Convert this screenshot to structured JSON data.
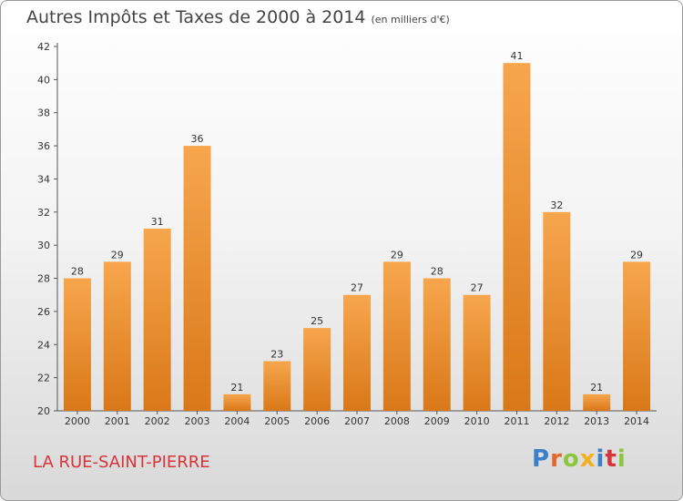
{
  "header": {
    "title": "Autres Impôts et Taxes de 2000 à 2014",
    "unit": "(en milliers d'€)"
  },
  "footer": {
    "location": "LA RUE-SAINT-PIERRE",
    "logo_letters": [
      "P",
      "r",
      "o",
      "x",
      "i",
      "t",
      "i"
    ],
    "logo_colors": [
      "#3a7fc8",
      "#e2672b",
      "#8cc63f",
      "#f2b01e",
      "#3a7fc8",
      "#d8343b",
      "#8cc63f"
    ]
  },
  "chart_data": {
    "type": "bar",
    "categories": [
      "2000",
      "2001",
      "2002",
      "2003",
      "2004",
      "2005",
      "2006",
      "2007",
      "2008",
      "2009",
      "2010",
      "2011",
      "2012",
      "2013",
      "2014"
    ],
    "values": [
      28,
      29,
      31,
      36,
      21,
      23,
      25,
      27,
      29,
      28,
      27,
      41,
      32,
      21,
      29
    ],
    "ylim": [
      20,
      42
    ],
    "yticks": [
      20,
      22,
      24,
      26,
      28,
      30,
      32,
      34,
      36,
      38,
      40,
      42
    ],
    "grid": false,
    "bar_color_top": "#f7a64d",
    "bar_color_bottom": "#d97818"
  }
}
